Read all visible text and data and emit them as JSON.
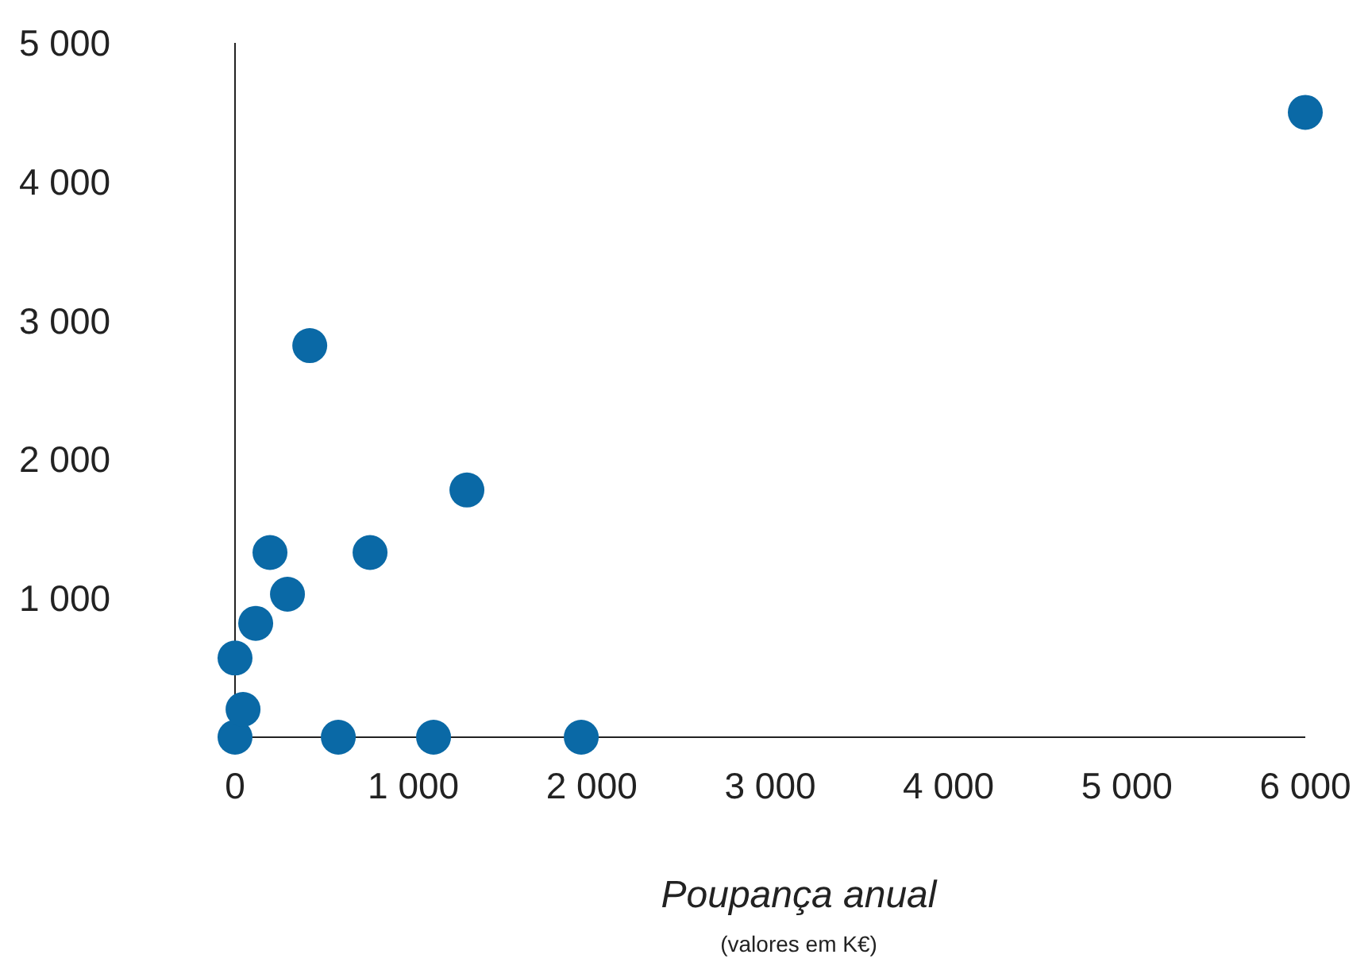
{
  "chart_data": {
    "type": "scatter",
    "xlabel": "Poupança anual",
    "annotations": [
      "(valores em K€)"
    ],
    "x": [
      0,
      0,
      45,
      116,
      196,
      294,
      419,
      579,
      757,
      1113,
      1300,
      1941,
      6000
    ],
    "values": [
      0,
      570,
      200,
      820,
      1330,
      1030,
      2820,
      0,
      1330,
      0,
      1780,
      0,
      4500
    ],
    "color": "#0a69a6",
    "marker": "circle",
    "grid": false,
    "legend": false,
    "xlim": [
      0,
      6000
    ],
    "xticks": [
      0,
      {
        "value": 1000,
        "label": "1 000"
      },
      {
        "value": 2000,
        "label": "2 000"
      },
      {
        "value": 3000,
        "label": "3 000"
      },
      {
        "value": 4000,
        "label": "4 000"
      },
      {
        "value": 5000,
        "label": "5 000"
      },
      {
        "value": 6000,
        "label": "6 000"
      }
    ],
    "ylim": [
      0,
      5000
    ],
    "yticks": [
      {
        "value": 1000,
        "label": "1 000"
      },
      {
        "value": 2000,
        "label": "2 000"
      },
      {
        "value": 3000,
        "label": "3 000"
      },
      {
        "value": 4000,
        "label": "4 000"
      },
      {
        "value": 5000,
        "label": "5 000"
      }
    ]
  }
}
